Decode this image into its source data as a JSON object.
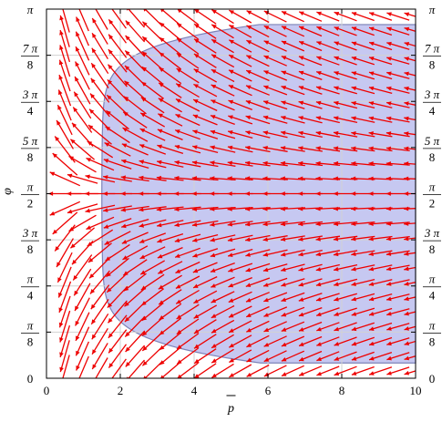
{
  "chart_data": {
    "type": "vector-field",
    "xlabel": "p̄",
    "ylabel": "φ",
    "xlim": [
      0,
      10
    ],
    "ylim": [
      0,
      3.14159
    ],
    "grid": true,
    "x_ticks": [
      "0",
      "2",
      "4",
      "6",
      "8",
      "10"
    ],
    "y_ticks": [
      {
        "value": 0,
        "num": "0",
        "den": ""
      },
      {
        "value": 0.3927,
        "num": "π",
        "den": "8"
      },
      {
        "value": 0.7854,
        "num": "π",
        "den": "4"
      },
      {
        "value": 1.1781,
        "num": "3 π",
        "den": "8"
      },
      {
        "value": 1.5708,
        "num": "π",
        "den": "2"
      },
      {
        "value": 1.9635,
        "num": "5 π",
        "den": "8"
      },
      {
        "value": 2.3562,
        "num": "3 π",
        "den": "4"
      },
      {
        "value": 2.7489,
        "num": "7 π",
        "den": "8"
      },
      {
        "value": 3.1416,
        "num": "π",
        "den": ""
      }
    ],
    "region": {
      "description_free": true,
      "fill_color": "#c6c8f1",
      "edge_color": "#7d83b8",
      "boundary_min_x": 1.5,
      "boundary_top_y": 3.01,
      "boundary_bottom_y": 0.13
    },
    "field": {
      "arrow_color": "#ee0000",
      "rows": 25,
      "columns": 21,
      "x_start": 0.5,
      "x_end": 10.0
    }
  }
}
